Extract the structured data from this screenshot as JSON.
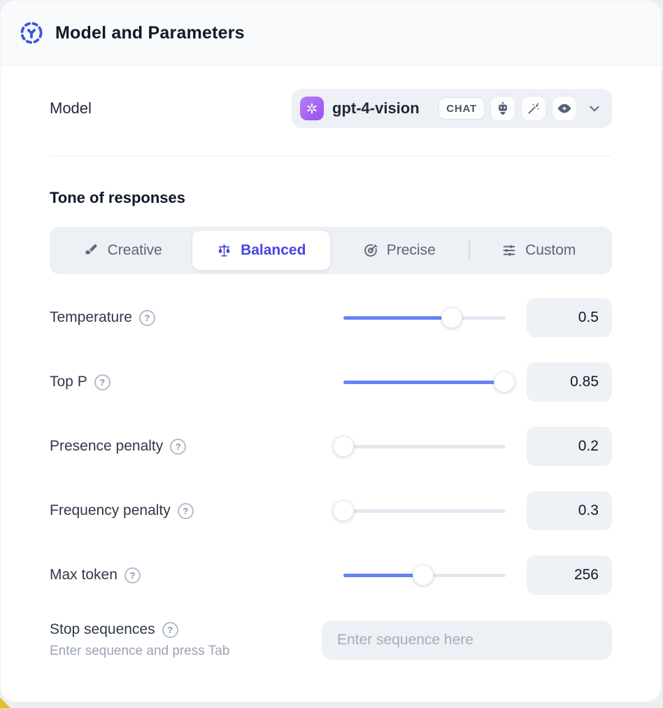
{
  "header": {
    "title": "Model and Parameters",
    "icon": "model-hub-icon"
  },
  "model_row": {
    "label": "Model",
    "selector": {
      "provider_icon": "openai-logo",
      "model_name": "gpt-4-vision",
      "type_badge": "CHAT",
      "capability_icons": [
        "robot-icon",
        "magic-wand-icon",
        "vision-eye-icon"
      ]
    }
  },
  "tone": {
    "heading": "Tone of responses",
    "tabs": [
      {
        "label": "Creative",
        "icon": "paintbrush-icon",
        "active": false
      },
      {
        "label": "Balanced",
        "icon": "balance-scale-icon",
        "active": true
      },
      {
        "label": "Precise",
        "icon": "target-icon",
        "active": false
      },
      {
        "label": "Custom",
        "icon": "sliders-icon",
        "active": false
      }
    ]
  },
  "parameters": [
    {
      "label": "Temperature",
      "value": "0.5",
      "slider_percent": 67
    },
    {
      "label": "Top P",
      "value": "0.85",
      "slider_percent": 99
    },
    {
      "label": "Presence penalty",
      "value": "0.2",
      "slider_percent": 0
    },
    {
      "label": "Frequency penalty",
      "value": "0.3",
      "slider_percent": 0
    },
    {
      "label": "Max token",
      "value": "256",
      "slider_percent": 49
    }
  ],
  "stop_sequences": {
    "label": "Stop sequences",
    "hint": "Enter sequence and press Tab",
    "placeholder": "Enter sequence here"
  },
  "colors": {
    "accent_blue": "#6583f4",
    "active_tab_text": "#4845e2",
    "header_icon_blue": "#3656e6",
    "provider_badge_purple": "#9a4ff0",
    "corner_accent_yellow": "#dec32b"
  }
}
